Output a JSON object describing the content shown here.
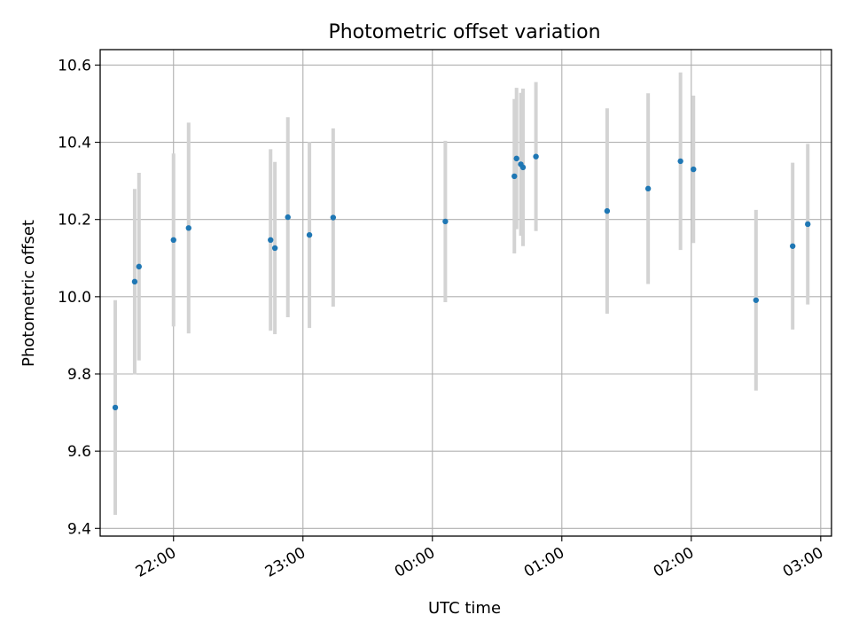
{
  "chart_data": {
    "type": "scatter",
    "title": "Photometric offset variation",
    "xlabel": "UTC time",
    "ylabel": "Photometric offset",
    "x_tick_labels": [
      "22:00",
      "23:00",
      "00:00",
      "01:00",
      "02:00",
      "03:00"
    ],
    "x_ticks": [
      "22:00",
      "23:00",
      "00:00",
      "01:00",
      "02:00",
      "03:00"
    ],
    "y_tick_labels": [
      "9.4",
      "9.6",
      "9.8",
      "10.0",
      "10.2",
      "10.4",
      "10.6"
    ],
    "y_ticks": [
      9.4,
      9.6,
      9.8,
      10.0,
      10.2,
      10.4,
      10.6
    ],
    "xlim": [
      "21:26",
      "03:05"
    ],
    "ylim": [
      9.38,
      10.64
    ],
    "grid": true,
    "point_color": "#1f77b4",
    "errorbar_color": "#d3d3d3",
    "series": [
      {
        "points": [
          {
            "x": "21:33",
            "y": 9.713,
            "yerr": 0.278
          },
          {
            "x": "21:42",
            "y": 10.039,
            "yerr": 0.24
          },
          {
            "x": "21:44",
            "y": 10.078,
            "yerr": 0.243
          },
          {
            "x": "22:00",
            "y": 10.147,
            "yerr": 0.224
          },
          {
            "x": "22:07",
            "y": 10.178,
            "yerr": 0.273
          },
          {
            "x": "22:45",
            "y": 10.147,
            "yerr": 0.235
          },
          {
            "x": "22:47",
            "y": 10.126,
            "yerr": 0.223
          },
          {
            "x": "22:53",
            "y": 10.206,
            "yerr": 0.259
          },
          {
            "x": "23:03",
            "y": 10.16,
            "yerr": 0.241
          },
          {
            "x": "23:14",
            "y": 10.205,
            "yerr": 0.231
          },
          {
            "x": "00:06",
            "y": 10.195,
            "yerr": 0.209
          },
          {
            "x": "00:38",
            "y": 10.312,
            "yerr": 0.2
          },
          {
            "x": "00:39",
            "y": 10.358,
            "yerr": 0.183
          },
          {
            "x": "00:41",
            "y": 10.343,
            "yerr": 0.185
          },
          {
            "x": "00:42",
            "y": 10.335,
            "yerr": 0.204
          },
          {
            "x": "00:48",
            "y": 10.363,
            "yerr": 0.193
          },
          {
            "x": "01:21",
            "y": 10.222,
            "yerr": 0.266
          },
          {
            "x": "01:40",
            "y": 10.28,
            "yerr": 0.247
          },
          {
            "x": "01:55",
            "y": 10.351,
            "yerr": 0.23
          },
          {
            "x": "02:01",
            "y": 10.33,
            "yerr": 0.191
          },
          {
            "x": "02:30",
            "y": 9.991,
            "yerr": 0.234
          },
          {
            "x": "02:47",
            "y": 10.131,
            "yerr": 0.216
          },
          {
            "x": "02:54",
            "y": 10.188,
            "yerr": 0.208
          }
        ]
      }
    ]
  }
}
